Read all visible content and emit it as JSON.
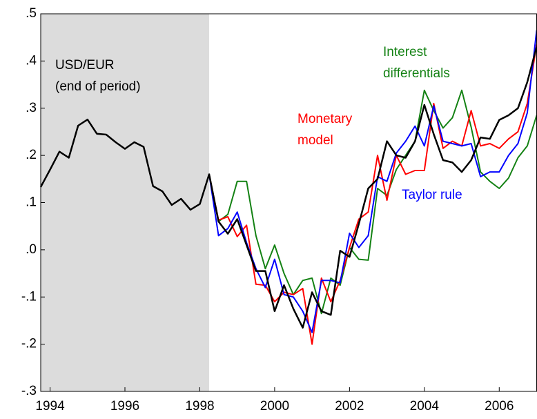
{
  "chart_data": {
    "type": "line",
    "x": [
      1993.75,
      1994,
      1994.25,
      1994.5,
      1994.75,
      1995,
      1995.25,
      1995.5,
      1995.75,
      1996,
      1996.25,
      1996.5,
      1996.75,
      1997,
      1997.25,
      1997.5,
      1997.75,
      1998,
      1998.25,
      1998.5,
      1998.75,
      1999,
      1999.25,
      1999.5,
      1999.75,
      2000,
      2000.25,
      2000.5,
      2000.75,
      2001,
      2001.25,
      2001.5,
      2001.75,
      2002,
      2002.25,
      2002.5,
      2002.75,
      2003,
      2003.25,
      2003.5,
      2003.75,
      2004,
      2004.25,
      2004.5,
      2004.75,
      2005,
      2005.25,
      2005.5,
      2005.75,
      2006,
      2006.25,
      2006.5,
      2006.75,
      2007
    ],
    "series": [
      {
        "name": "Interest differentials",
        "color": "#148214",
        "values": [
          null,
          null,
          null,
          null,
          null,
          null,
          null,
          null,
          null,
          null,
          null,
          null,
          null,
          null,
          null,
          null,
          null,
          null,
          0.16,
          0.06,
          0.075,
          0.145,
          0.145,
          0.03,
          -0.04,
          0.01,
          -0.05,
          -0.095,
          -0.065,
          -0.06,
          -0.135,
          -0.06,
          -0.075,
          0.005,
          -0.02,
          -0.022,
          0.13,
          0.115,
          0.17,
          0.2,
          0.23,
          0.338,
          0.295,
          0.258,
          0.28,
          0.338,
          0.26,
          0.165,
          0.145,
          0.13,
          0.152,
          0.195,
          0.22,
          0.285
        ]
      },
      {
        "name": "Monetary model",
        "color": "#ff0000",
        "values": [
          null,
          null,
          null,
          null,
          null,
          null,
          null,
          null,
          null,
          null,
          null,
          null,
          null,
          null,
          null,
          null,
          null,
          null,
          0.16,
          0.063,
          0.07,
          0.028,
          0.052,
          -0.073,
          -0.075,
          -0.11,
          -0.09,
          -0.095,
          -0.082,
          -0.2,
          -0.06,
          -0.11,
          -0.065,
          0.005,
          0.065,
          0.08,
          0.2,
          0.105,
          0.2,
          0.16,
          0.168,
          0.168,
          0.31,
          0.215,
          0.23,
          0.22,
          0.295,
          0.22,
          0.225,
          0.215,
          0.235,
          0.25,
          0.31,
          0.435
        ]
      },
      {
        "name": "Taylor rule",
        "color": "#0000ff",
        "values": [
          null,
          null,
          null,
          null,
          null,
          null,
          null,
          null,
          null,
          null,
          null,
          null,
          null,
          null,
          null,
          null,
          null,
          null,
          0.16,
          0.03,
          0.045,
          0.08,
          0.015,
          -0.04,
          -0.08,
          -0.02,
          -0.095,
          -0.1,
          -0.13,
          -0.175,
          -0.065,
          -0.065,
          -0.07,
          0.035,
          0.005,
          0.03,
          0.155,
          0.145,
          0.205,
          0.23,
          0.262,
          0.22,
          0.305,
          0.23,
          0.225,
          0.22,
          0.225,
          0.155,
          0.165,
          0.165,
          0.2,
          0.225,
          0.29,
          0.465
        ]
      },
      {
        "name": "USD/EUR (end of period)",
        "color": "#000000",
        "values": [
          0.133,
          0.17,
          0.208,
          0.195,
          0.263,
          0.276,
          0.246,
          0.244,
          0.228,
          0.214,
          0.228,
          0.218,
          0.135,
          0.124,
          0.095,
          0.108,
          0.085,
          0.097,
          0.16,
          0.06,
          0.034,
          0.065,
          0.01,
          -0.045,
          -0.045,
          -0.13,
          -0.075,
          -0.125,
          -0.165,
          -0.09,
          -0.13,
          -0.138,
          -0.002,
          -0.015,
          0.055,
          0.13,
          0.15,
          0.23,
          0.2,
          0.195,
          0.23,
          0.307,
          0.245,
          0.19,
          0.185,
          0.165,
          0.19,
          0.238,
          0.235,
          0.275,
          0.285,
          0.3,
          0.355,
          0.43
        ]
      }
    ],
    "annotations": [
      {
        "lines": [
          "USD/EUR",
          "(end of period)"
        ],
        "color": "#000000"
      },
      {
        "lines": [
          "Monetary",
          "model"
        ],
        "color": "#ff0000"
      },
      {
        "lines": [
          "Interest",
          "differentials"
        ],
        "color": "#148214"
      },
      {
        "lines": [
          "Taylor rule"
        ],
        "color": "#0000ff"
      }
    ],
    "shade": [
      1993.75,
      1998.25
    ],
    "shade_color": "#dcdcdc",
    "xlim": [
      1993.75,
      2007
    ],
    "xticks": [
      1994,
      1996,
      1998,
      2000,
      2002,
      2004,
      2006
    ],
    "ylim": [
      -0.3,
      0.5
    ],
    "yticks": [
      {
        "value": -0.3,
        "label": "-.3"
      },
      {
        "value": -0.2,
        "label": "-.2"
      },
      {
        "value": -0.1,
        "label": "-.1"
      },
      {
        "value": 0,
        "label": ".0"
      },
      {
        "value": 0.1,
        "label": ".1"
      },
      {
        "value": 0.2,
        "label": ".2"
      },
      {
        "value": 0.3,
        "label": ".3"
      },
      {
        "value": 0.4,
        "label": ".4"
      },
      {
        "value": 0.5,
        "label": ".5"
      }
    ]
  }
}
